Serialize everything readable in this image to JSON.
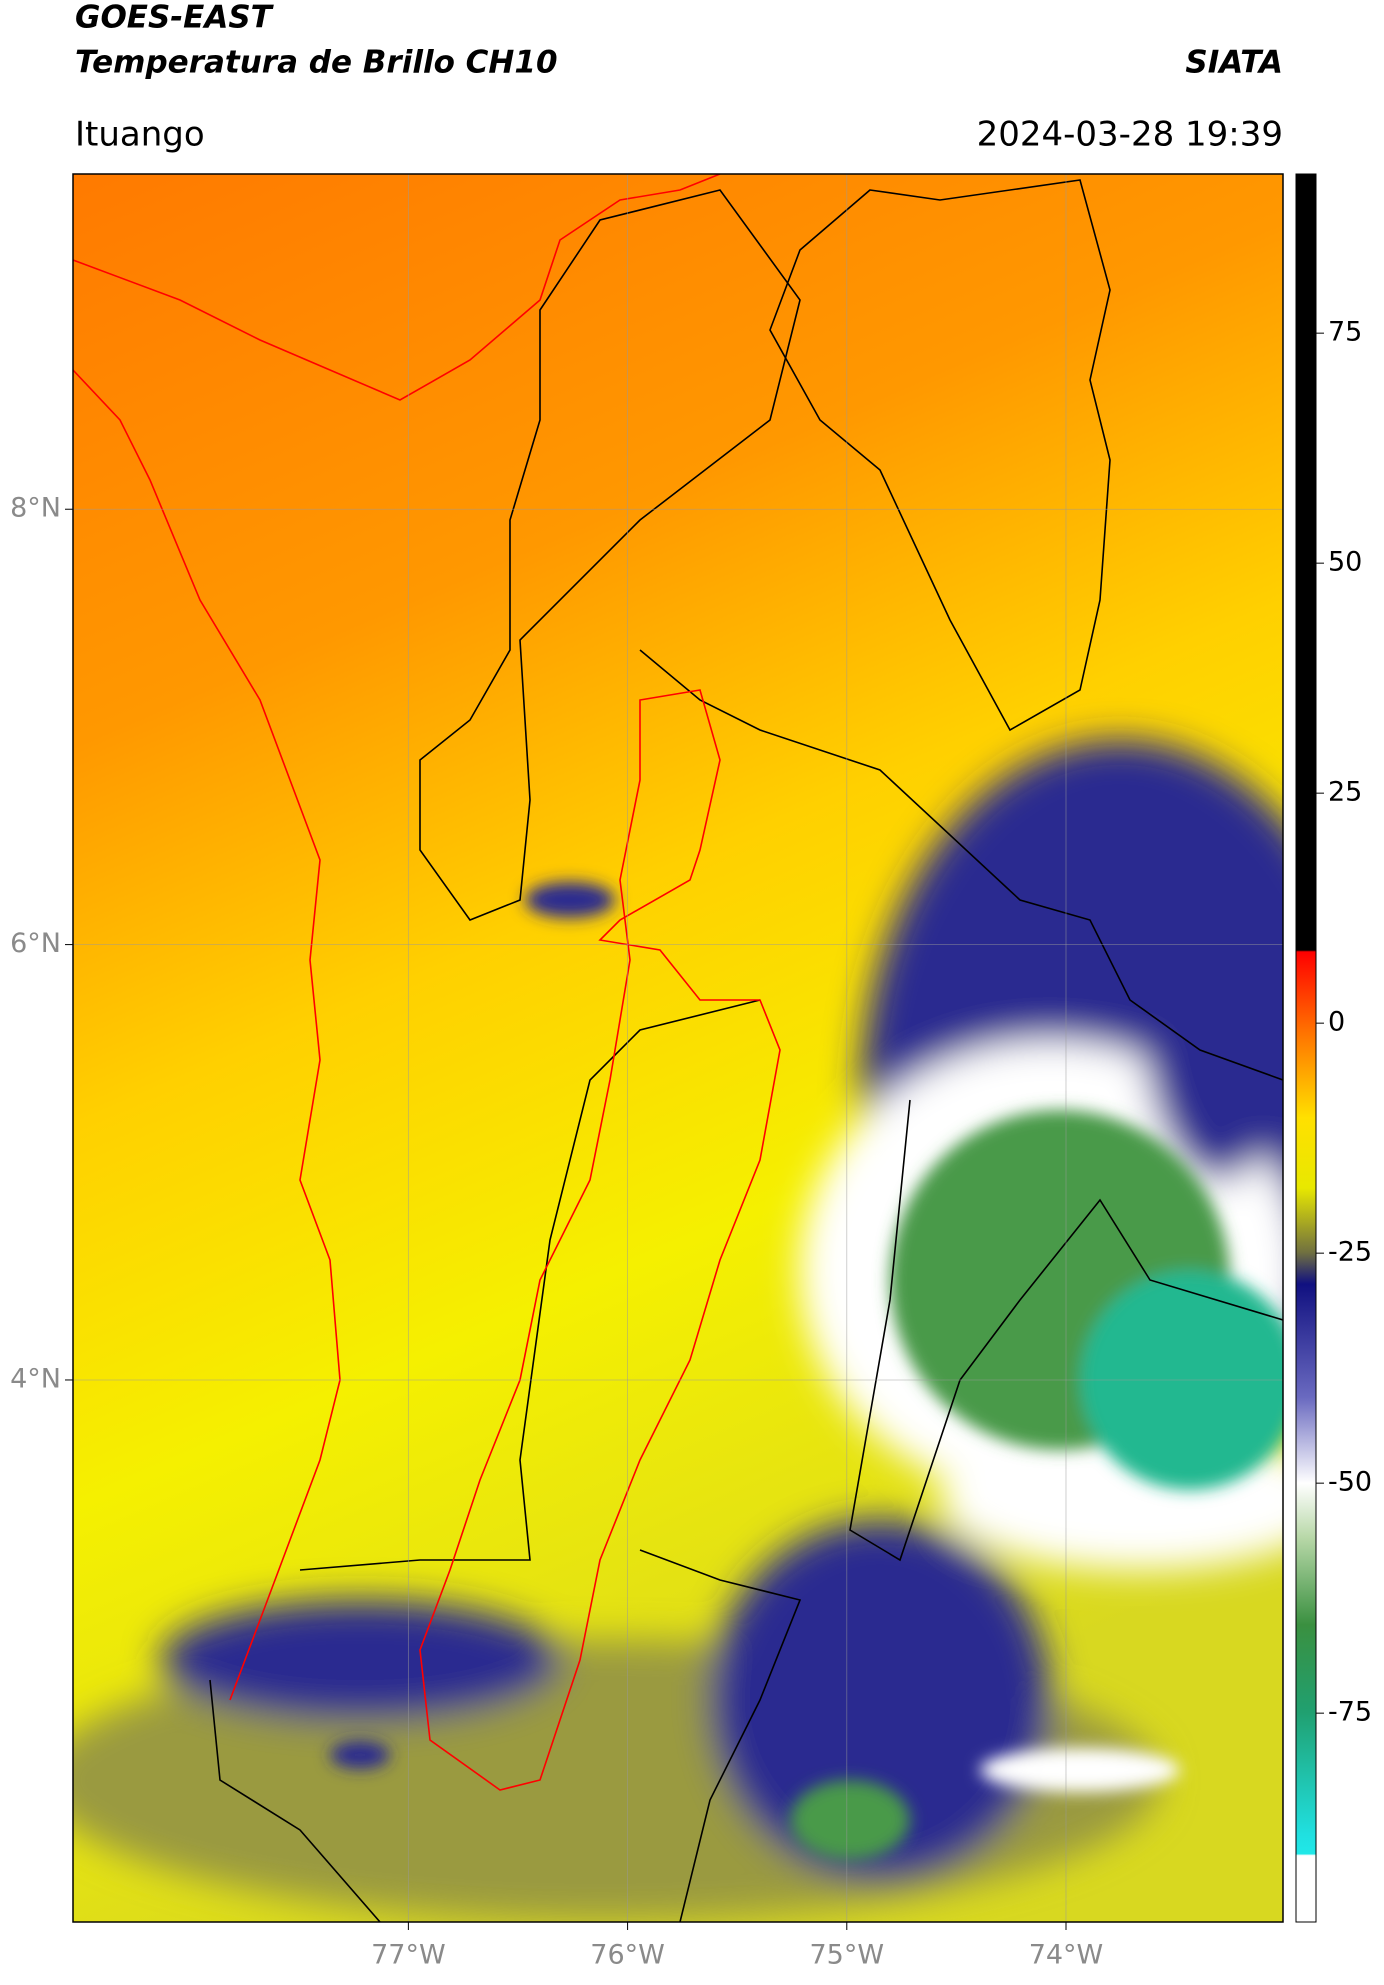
{
  "header": {
    "title": "GOES-EAST",
    "subtitle": "Temperatura de Brillo CH10",
    "organization": "SIATA",
    "location": "Ituango",
    "datetime": "2024-03-28 19:39"
  },
  "map": {
    "xlim": [
      -78.53,
      -73.01
    ],
    "ylim": [
      1.51,
      9.54
    ],
    "xticks": [
      {
        "value": -77,
        "label": "77°W"
      },
      {
        "value": -76,
        "label": "76°W"
      },
      {
        "value": -75,
        "label": "75°W"
      },
      {
        "value": -74,
        "label": "74°W"
      }
    ],
    "yticks": [
      {
        "value": 8,
        "label": "8°N"
      },
      {
        "value": 6,
        "label": "6°N"
      },
      {
        "value": 4,
        "label": "4°N"
      }
    ]
  },
  "colorbar": {
    "clim": [
      -97.7,
      92.3
    ],
    "ticks": [
      75,
      50,
      25,
      0,
      -25,
      -50,
      -75
    ]
  }
}
